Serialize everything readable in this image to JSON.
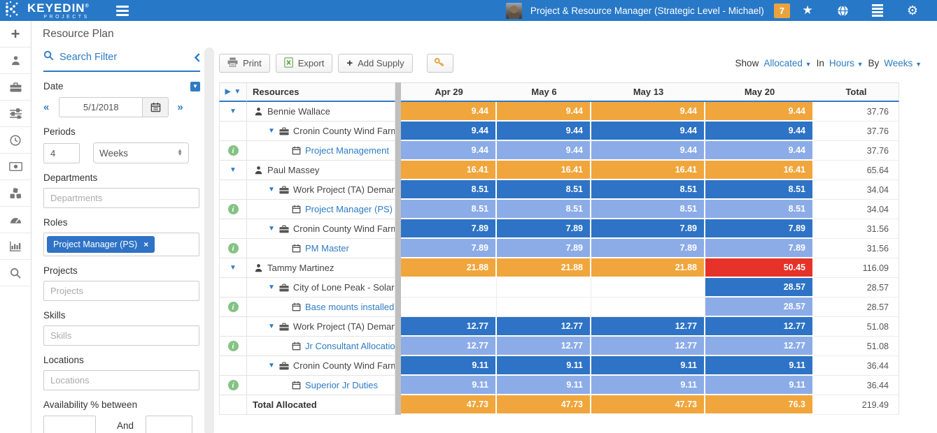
{
  "topbar": {
    "brand": "KEYEDIN",
    "brand_mark": "®",
    "brand_sub": "PROJECTS",
    "user_label": "Project & Resource Manager (Strategic Level - Michael)",
    "notification_count": "7"
  },
  "page_title": "Resource Plan",
  "filter": {
    "title": "Search Filter",
    "date_label": "Date",
    "date_value": "5/1/2018",
    "periods_label": "Periods",
    "periods_value": "4",
    "periods_unit": "Weeks",
    "departments_label": "Departments",
    "departments_placeholder": "Departments",
    "roles_label": "Roles",
    "roles_tag": "Project Manager (PS)",
    "projects_label": "Projects",
    "projects_placeholder": "Projects",
    "skills_label": "Skills",
    "skills_placeholder": "Skills",
    "locations_label": "Locations",
    "locations_placeholder": "Locations",
    "availability_label": "Availability % between",
    "availability_and": "And"
  },
  "toolbar": {
    "print_label": "Print",
    "export_label": "Export",
    "add_supply_label": "Add Supply"
  },
  "show_controls": {
    "show": "Show",
    "allocated": "Allocated",
    "in": "In",
    "hours": "Hours",
    "by": "By",
    "weeks": "Weeks"
  },
  "grid": {
    "resources_header": "Resources",
    "week_headers": [
      "Apr 29",
      "May 6",
      "May 13",
      "May 20"
    ],
    "total_header": "Total",
    "rows": [
      {
        "type": "person",
        "label": "Bennie Wallace",
        "values": [
          "9.44",
          "9.44",
          "9.44",
          "9.44"
        ],
        "styles": [
          "orange",
          "orange",
          "orange",
          "orange"
        ],
        "total": "37.76"
      },
      {
        "type": "project",
        "label": "Cronin County Wind Farm (",
        "values": [
          "9.44",
          "9.44",
          "9.44",
          "9.44"
        ],
        "styles": [
          "blue",
          "blue",
          "blue",
          "blue"
        ],
        "total": "37.76"
      },
      {
        "type": "task",
        "label": "Project Management",
        "values": [
          "9.44",
          "9.44",
          "9.44",
          "9.44"
        ],
        "styles": [
          "lightblue",
          "lightblue",
          "lightblue",
          "lightblue"
        ],
        "total": "37.76"
      },
      {
        "type": "person",
        "label": "Paul Massey",
        "values": [
          "16.41",
          "16.41",
          "16.41",
          "16.41"
        ],
        "styles": [
          "orange",
          "orange",
          "orange",
          "orange"
        ],
        "total": "65.64"
      },
      {
        "type": "project",
        "label": "Work Project (TA) Demand",
        "values": [
          "8.51",
          "8.51",
          "8.51",
          "8.51"
        ],
        "styles": [
          "blue",
          "blue",
          "blue",
          "blue"
        ],
        "total": "34.04"
      },
      {
        "type": "task",
        "label": "Project Manager (PS) A",
        "values": [
          "8.51",
          "8.51",
          "8.51",
          "8.51"
        ],
        "styles": [
          "lightblue",
          "lightblue",
          "lightblue",
          "lightblue"
        ],
        "total": "34.04"
      },
      {
        "type": "project",
        "label": "Cronin County Wind Farm (",
        "values": [
          "7.89",
          "7.89",
          "7.89",
          "7.89"
        ],
        "styles": [
          "blue",
          "blue",
          "blue",
          "blue"
        ],
        "total": "31.56"
      },
      {
        "type": "task",
        "label": "PM Master",
        "values": [
          "7.89",
          "7.89",
          "7.89",
          "7.89"
        ],
        "styles": [
          "lightblue",
          "lightblue",
          "lightblue",
          "lightblue"
        ],
        "total": "31.56"
      },
      {
        "type": "person",
        "label": "Tammy Martinez",
        "values": [
          "21.88",
          "21.88",
          "21.88",
          "50.45"
        ],
        "styles": [
          "orange",
          "orange",
          "orange",
          "red"
        ],
        "total": "116.09"
      },
      {
        "type": "project",
        "label": "City of Lone Peak - Solar Fie",
        "values": [
          "",
          "",
          "",
          "28.57"
        ],
        "styles": [
          null,
          null,
          null,
          "blue"
        ],
        "total": "28.57"
      },
      {
        "type": "task",
        "label": "Base mounts installed",
        "values": [
          "",
          "",
          "",
          "28.57"
        ],
        "styles": [
          null,
          null,
          null,
          "lightblue"
        ],
        "total": "28.57"
      },
      {
        "type": "project",
        "label": "Work Project (TA) Demand",
        "values": [
          "12.77",
          "12.77",
          "12.77",
          "12.77"
        ],
        "styles": [
          "blue",
          "blue",
          "blue",
          "blue"
        ],
        "total": "51.08"
      },
      {
        "type": "task",
        "label": "Jr Consultant Allocation",
        "values": [
          "12.77",
          "12.77",
          "12.77",
          "12.77"
        ],
        "styles": [
          "lightblue",
          "lightblue",
          "lightblue",
          "lightblue"
        ],
        "total": "51.08"
      },
      {
        "type": "project",
        "label": "Cronin County Wind Farm (",
        "values": [
          "9.11",
          "9.11",
          "9.11",
          "9.11"
        ],
        "styles": [
          "blue",
          "blue",
          "blue",
          "blue"
        ],
        "total": "36.44"
      },
      {
        "type": "task",
        "label": "Superior Jr Duties",
        "values": [
          "9.11",
          "9.11",
          "9.11",
          "9.11"
        ],
        "styles": [
          "lightblue",
          "lightblue",
          "lightblue",
          "lightblue"
        ],
        "total": "36.44"
      },
      {
        "type": "total",
        "label": "Total Allocated",
        "values": [
          "47.73",
          "47.73",
          "47.73",
          "76.3"
        ],
        "styles": [
          "orange",
          "orange",
          "orange",
          "orange"
        ],
        "total": "219.49"
      }
    ]
  },
  "colors": {
    "topbar_blue": "#2878C8",
    "accent_blue": "#2E7CC3",
    "cell_orange": "#F0A63C",
    "cell_blue": "#2E73C5",
    "cell_lightblue": "#8CACE8",
    "cell_red": "#E63229",
    "info_green": "#85C285",
    "badge_orange": "#E8A33D"
  }
}
